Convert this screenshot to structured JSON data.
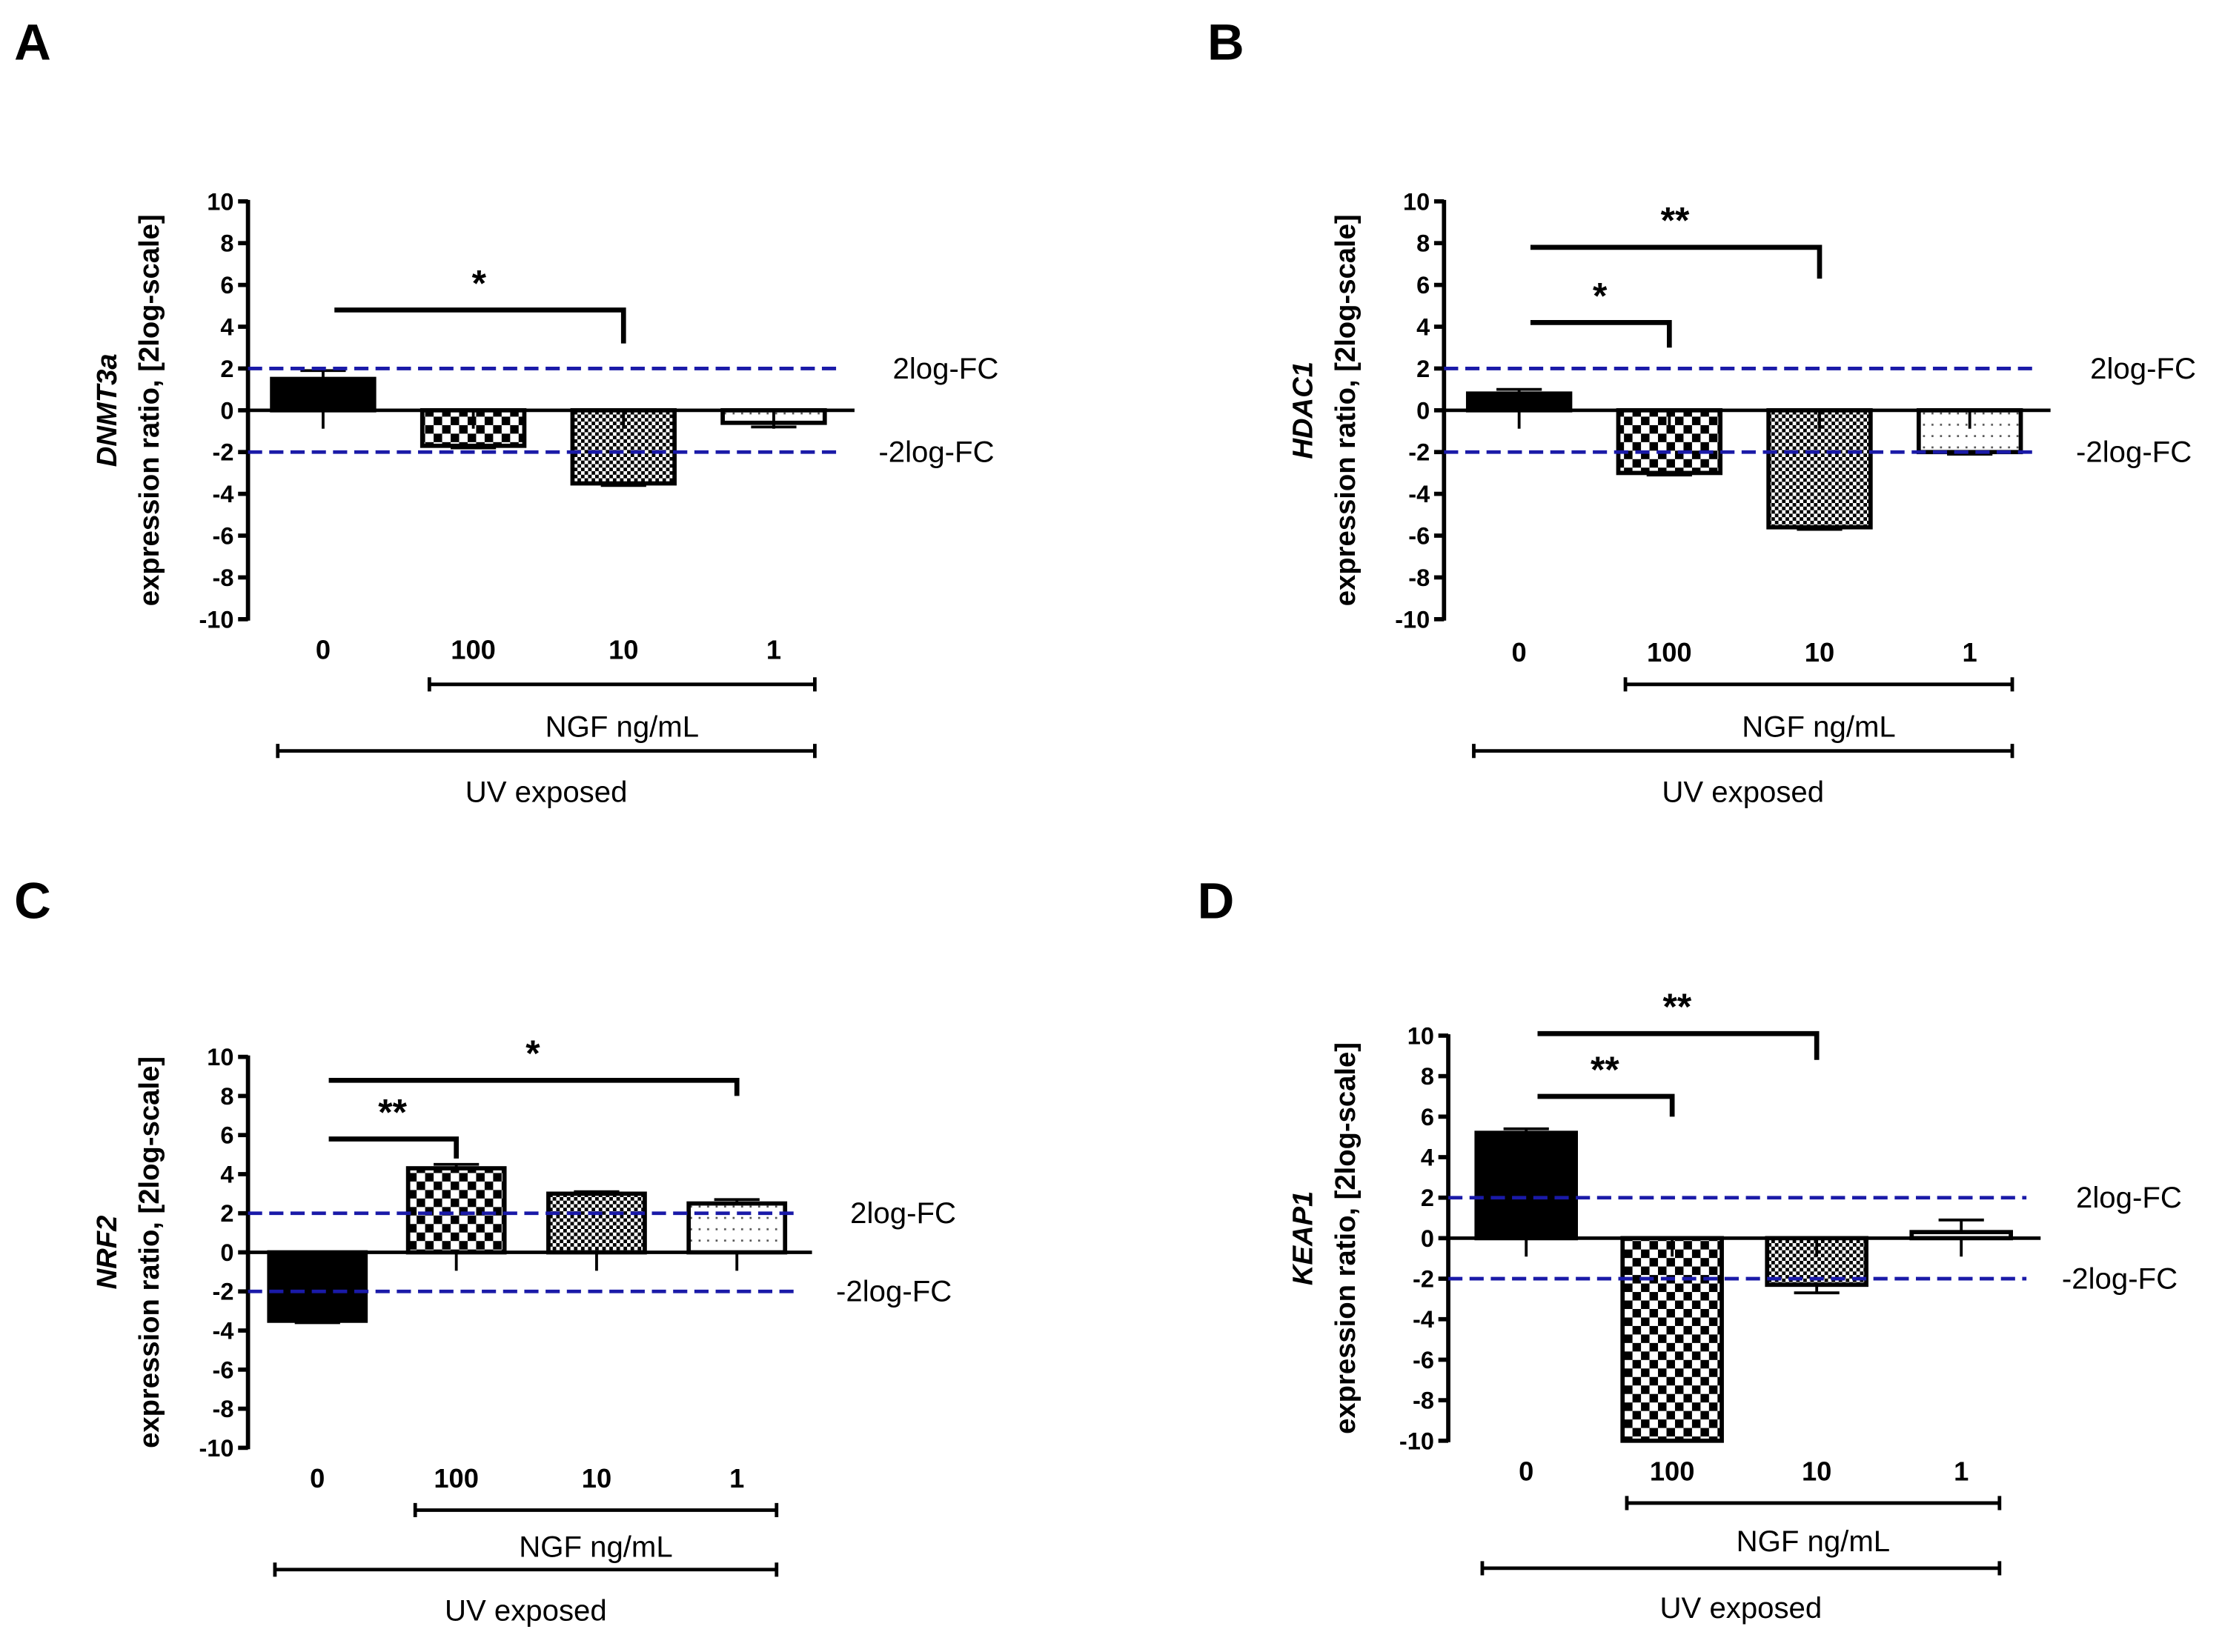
{
  "colors": {
    "threshold_line": "#1a1aa8",
    "bar_outline": "#000000"
  },
  "chart_data": [
    {
      "type": "bar",
      "panel": "A",
      "gene": "DNMT3a",
      "ylabel": "expression ratio, [2log-scale]",
      "ylim": [
        -10,
        10
      ],
      "yticks": [
        10,
        8,
        6,
        4,
        2,
        0,
        -2,
        -4,
        -6,
        -8,
        -10
      ],
      "categories": [
        "0",
        "100",
        "10",
        "1"
      ],
      "values": [
        1.5,
        -1.7,
        -3.5,
        -0.6
      ],
      "errors": [
        0.4,
        0.1,
        0.1,
        0.2
      ],
      "patterns": [
        "solid",
        "checker",
        "fine-checker",
        "dots"
      ],
      "thresholds": [
        {
          "value": 2,
          "label": "2log-FC"
        },
        {
          "value": -2,
          "label": "-2log-FC"
        }
      ],
      "group_labels": {
        "ngf": "NGF ng/mL",
        "uv": "UV exposed"
      },
      "significance": [
        {
          "from": 0,
          "to": 2,
          "label": "*"
        }
      ]
    },
    {
      "type": "bar",
      "panel": "B",
      "gene": "HDAC1",
      "ylabel": "expression ratio, [2log-scale]",
      "ylim": [
        -10,
        10
      ],
      "yticks": [
        10,
        8,
        6,
        4,
        2,
        0,
        -2,
        -4,
        -6,
        -8,
        -10
      ],
      "categories": [
        "0",
        "100",
        "10",
        "1"
      ],
      "values": [
        0.8,
        -3.0,
        -5.6,
        -2.0
      ],
      "errors": [
        0.2,
        0.1,
        0.1,
        0.1
      ],
      "patterns": [
        "solid",
        "checker",
        "fine-checker",
        "dots"
      ],
      "thresholds": [
        {
          "value": 2,
          "label": "2log-FC"
        },
        {
          "value": -2,
          "label": "-2log-FC"
        }
      ],
      "group_labels": {
        "ngf": "NGF ng/mL",
        "uv": "UV exposed"
      },
      "significance": [
        {
          "from": 0,
          "to": 1,
          "label": "*"
        },
        {
          "from": 0,
          "to": 2,
          "label": "**"
        }
      ]
    },
    {
      "type": "bar",
      "panel": "C",
      "gene": "NRF2",
      "ylabel": "expression ratio, [2log-scale]",
      "ylim": [
        -10,
        10
      ],
      "yticks": [
        10,
        8,
        6,
        4,
        2,
        0,
        -2,
        -4,
        -6,
        -8,
        -10
      ],
      "categories": [
        "0",
        "100",
        "10",
        "1"
      ],
      "values": [
        -3.5,
        4.3,
        3.0,
        2.5
      ],
      "errors": [
        0.1,
        0.2,
        0.1,
        0.2
      ],
      "patterns": [
        "solid",
        "checker",
        "fine-checker",
        "dots"
      ],
      "thresholds": [
        {
          "value": 2,
          "label": "2log-FC"
        },
        {
          "value": -2,
          "label": "-2log-FC"
        }
      ],
      "group_labels": {
        "ngf": "NGF ng/mL",
        "uv": "UV exposed"
      },
      "significance": [
        {
          "from": 0,
          "to": 1,
          "label": "**"
        },
        {
          "from": 0,
          "to": 3,
          "label": "*"
        }
      ]
    },
    {
      "type": "bar",
      "panel": "D",
      "gene": "KEAP1",
      "ylabel": "expression ratio, [2log-scale]",
      "ylim": [
        -10,
        10
      ],
      "yticks": [
        10,
        8,
        6,
        4,
        2,
        0,
        -2,
        -4,
        -6,
        -8,
        -10
      ],
      "categories": [
        "0",
        "100",
        "10",
        "1"
      ],
      "values": [
        5.2,
        -10.0,
        -2.3,
        0.3
      ],
      "errors": [
        0.2,
        0.0,
        0.4,
        0.6
      ],
      "patterns": [
        "solid",
        "checker",
        "fine-checker",
        "dots"
      ],
      "thresholds": [
        {
          "value": 2,
          "label": "2log-FC"
        },
        {
          "value": -2,
          "label": "-2log-FC"
        }
      ],
      "group_labels": {
        "ngf": "NGF ng/mL",
        "uv": "UV exposed"
      },
      "significance": [
        {
          "from": 0,
          "to": 1,
          "label": "**"
        },
        {
          "from": 0,
          "to": 2,
          "label": "**"
        }
      ]
    }
  ]
}
